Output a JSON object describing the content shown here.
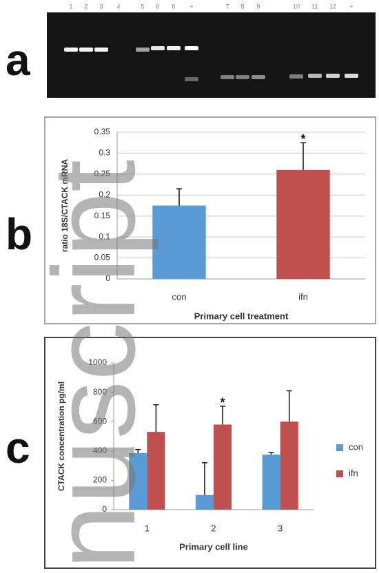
{
  "panel_labels": [
    "a",
    "b",
    "c"
  ],
  "gel": {
    "lane_labels": [
      "1",
      "2",
      "3",
      "4",
      "5",
      "6",
      "6",
      "+",
      "7",
      "8",
      "9",
      "10",
      "11",
      "12",
      "+"
    ]
  },
  "watermark": "nuscript",
  "chart_data": [
    {
      "type": "bar",
      "y_label": "ratio 18S/CTACK mRNA",
      "x_label": "Primary cell treatment",
      "categories": [
        "con",
        "ifn"
      ],
      "values": [
        0.175,
        0.26
      ],
      "errors": [
        0.04,
        0.065
      ],
      "colors": [
        "#5b9bd5",
        "#c0504d"
      ],
      "ylim": [
        0,
        0.35
      ],
      "yticks": [
        0,
        0.05,
        0.1,
        0.15,
        0.2,
        0.25,
        0.3,
        0.35
      ],
      "grid": true,
      "annotations": [
        {
          "text": "*",
          "category": "ifn"
        }
      ]
    },
    {
      "type": "grouped-bar",
      "y_label": "CTACK concentration pg/ml",
      "x_label": "Primary cell line",
      "categories": [
        "1",
        "2",
        "3"
      ],
      "series": [
        {
          "name": "con",
          "color": "#5b9bd5",
          "values": [
            385,
            100,
            375
          ],
          "errors": [
            25,
            220,
            15
          ]
        },
        {
          "name": "ifn",
          "color": "#c0504d",
          "values": [
            530,
            580,
            600
          ],
          "errors": [
            185,
            125,
            210
          ]
        }
      ],
      "ylim": [
        0,
        1000
      ],
      "yticks": [
        0,
        200,
        400,
        600,
        800,
        1000
      ],
      "grid": false,
      "legend": "right",
      "annotations": [
        {
          "text": "*",
          "category": "2"
        }
      ]
    }
  ]
}
